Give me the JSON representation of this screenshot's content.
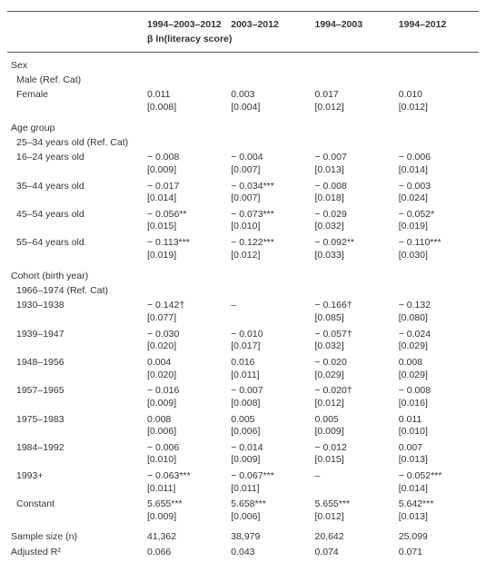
{
  "header": {
    "cols": [
      "1994–2003–2012",
      "2003–2012",
      "1994–2003",
      "1994–2012"
    ],
    "subhead": "β ln(literacy score)"
  },
  "sections": [
    {
      "label": "Sex",
      "level": 0,
      "rows": [
        {
          "label": "Male (Ref. Cat)",
          "level": 1,
          "cells": [
            "",
            "",
            "",
            ""
          ]
        },
        {
          "label": "Female",
          "level": 1,
          "cells": [
            "0.011",
            "0.003",
            "0.017",
            "0.010"
          ],
          "se": [
            "[0.008]",
            "[0.004]",
            "[0.012]",
            "[0.012]"
          ]
        }
      ]
    },
    {
      "label": "Age group",
      "level": 0,
      "rows": [
        {
          "label": "25–34 years old (Ref. Cat)",
          "level": 1,
          "cells": [
            "",
            "",
            "",
            ""
          ]
        },
        {
          "label": "16–24 years old",
          "level": 1,
          "cells": [
            "− 0.008",
            "− 0.004",
            "− 0.007",
            "− 0.006"
          ],
          "se": [
            "[0.009]",
            "[0.007]",
            "[0.013]",
            "[0.014]"
          ]
        },
        {
          "label": "35–44 years old",
          "level": 1,
          "cells": [
            "− 0.017",
            "− 0.034***",
            "− 0.008",
            "− 0.003"
          ],
          "se": [
            "[0.014]",
            "[0.007]",
            "[0.018]",
            "[0.024]"
          ]
        },
        {
          "label": "45–54 years old",
          "level": 1,
          "cells": [
            "− 0.056**",
            "− 0.073***",
            "− 0.029",
            "− 0.052*"
          ],
          "se": [
            "[0.015]",
            "[0.010]",
            "[0.032]",
            "[0.019]"
          ]
        },
        {
          "label": "55–64 years old",
          "level": 1,
          "cells": [
            "− 0.113***",
            "− 0.122***",
            "− 0.092**",
            "− 0.110***"
          ],
          "se": [
            "[0.019]",
            "[0.012]",
            "[0.033]",
            "[0.030]"
          ]
        }
      ]
    },
    {
      "label": "Cohort (birth year)",
      "level": 0,
      "rows": [
        {
          "label": "1966–1974 (Ref. Cat)",
          "level": 1,
          "cells": [
            "",
            "",
            "",
            ""
          ]
        },
        {
          "label": "1930–1938",
          "level": 1,
          "cells": [
            "− 0.142†",
            "–",
            "− 0.166†",
            "− 0.132"
          ],
          "se": [
            "[0.077]",
            "",
            "[0.085]",
            "[0.080]"
          ]
        },
        {
          "label": "1939–1947",
          "level": 1,
          "cells": [
            "− 0.030",
            "− 0.010",
            "− 0.057†",
            "− 0.024"
          ],
          "se": [
            "[0.020]",
            "[0.017]",
            "[0.032]",
            "[0.029]"
          ]
        },
        {
          "label": "1948–1956",
          "level": 1,
          "cells": [
            "0.004",
            "0.016",
            "− 0.020",
            "0.008"
          ],
          "se": [
            "[0.020]",
            "[0.011]",
            "[0.029]",
            "[0.029]"
          ]
        },
        {
          "label": "1957–1965",
          "level": 1,
          "cells": [
            "− 0.016",
            "− 0.007",
            "− 0.020†",
            "− 0.008"
          ],
          "se": [
            "[0.009]",
            "[0.008]",
            "[0.012]",
            "[0.016]"
          ]
        },
        {
          "label": "1975–1983",
          "level": 1,
          "cells": [
            "0.008",
            "0.005",
            "0.005",
            "0.011"
          ],
          "se": [
            "[0.006]",
            "[0.006]",
            "[0.009]",
            "[0.010]"
          ]
        },
        {
          "label": "1984–1992",
          "level": 1,
          "cells": [
            "− 0.006",
            "− 0.014",
            "− 0.012",
            "0.007"
          ],
          "se": [
            "[0.010]",
            "[0.009]",
            "[0.015]",
            "[0.013]"
          ]
        },
        {
          "label": "1993+",
          "level": 1,
          "cells": [
            "− 0.063***",
            "− 0.067***",
            "–",
            "− 0.052***"
          ],
          "se": [
            "[0.011]",
            "[0.011]",
            "",
            "[0.014]"
          ]
        },
        {
          "label": "Constant",
          "level": 1,
          "cells": [
            "5.655***",
            "5.658***",
            "5.655***",
            "5.642***"
          ],
          "se": [
            "[0.009]",
            "[0.006]",
            "[0.012]",
            "[0.013]"
          ]
        }
      ]
    },
    {
      "label": null,
      "level": 0,
      "rows": [
        {
          "label": "Sample size (n)",
          "level": 0,
          "cells": [
            "41,362",
            "38,979",
            "20,642",
            "25,099"
          ],
          "gap": true
        },
        {
          "label": "Adjusted R²",
          "level": 0,
          "cells": [
            "0.066",
            "0.043",
            "0.074",
            "0.071"
          ]
        }
      ]
    }
  ]
}
